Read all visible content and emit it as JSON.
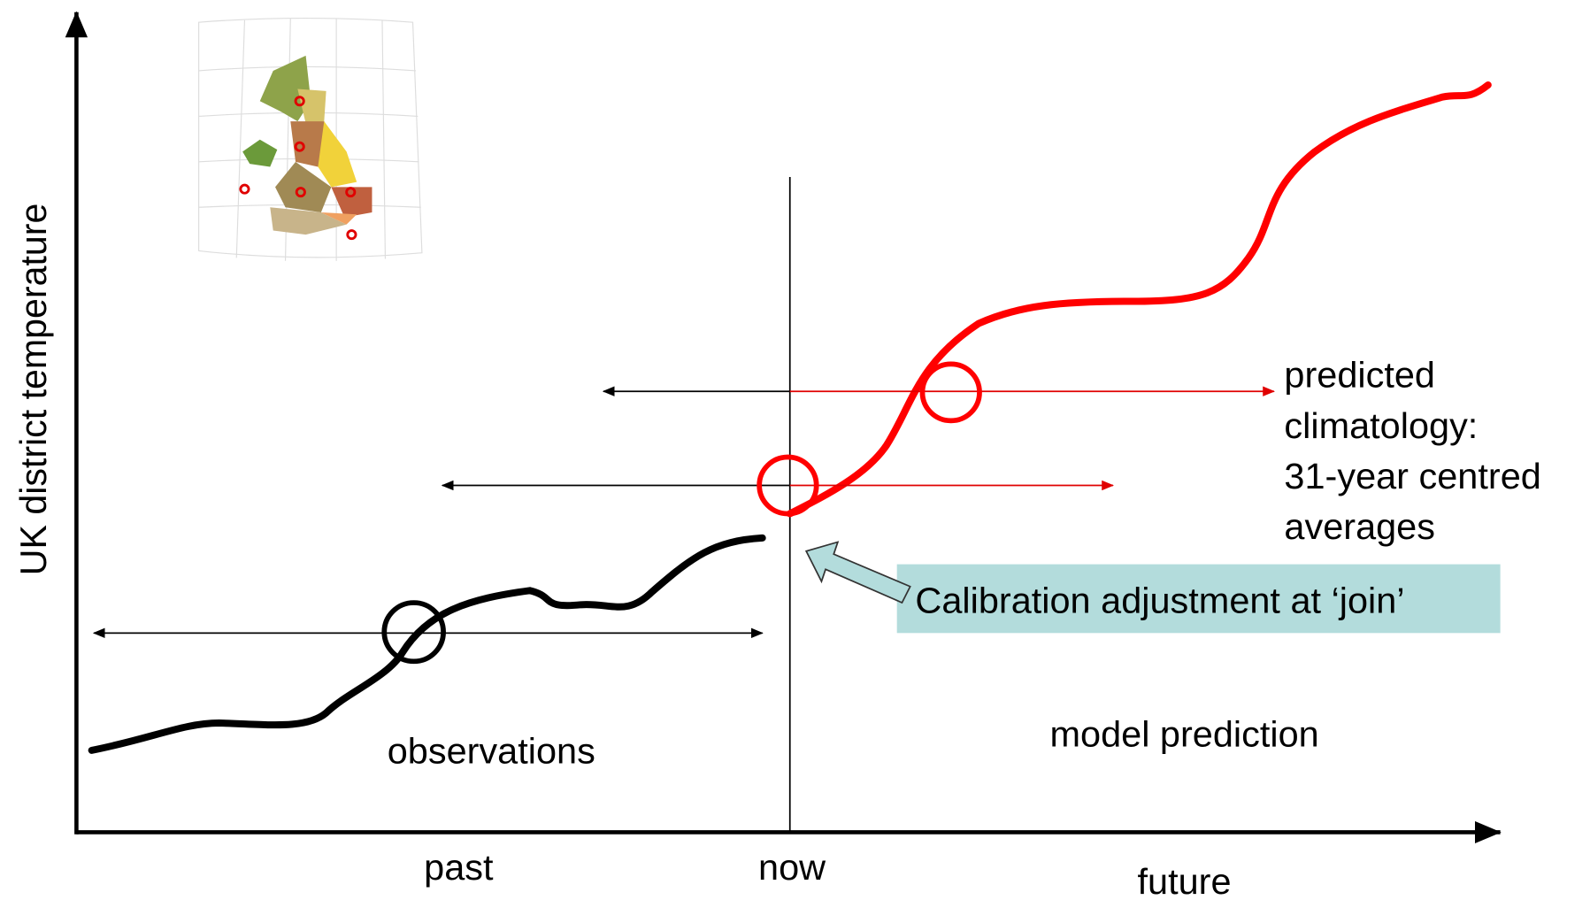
{
  "axis": {
    "y_label": "UK district  temperature"
  },
  "x_labels": {
    "past": "past",
    "now": "now",
    "future": "future"
  },
  "regions": {
    "observations": "observations",
    "model_prediction": "model prediction"
  },
  "annotations": {
    "predicted_climatology": [
      "predicted",
      "climatology:",
      "31-year centred",
      "averages"
    ],
    "calibration": "Calibration adjustment at ‘join’"
  }
}
